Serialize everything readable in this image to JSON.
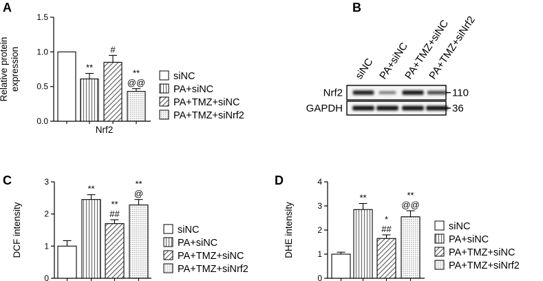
{
  "panels": {
    "A": {
      "letter": "A"
    },
    "B": {
      "letter": "B"
    },
    "C": {
      "letter": "C"
    },
    "D": {
      "letter": "D"
    }
  },
  "legend_entries": [
    "siNC",
    "PA+siNC",
    "PA+TMZ+siNC",
    "PA+TMZ+siNrf2"
  ],
  "chart_data": [
    {
      "id": "A",
      "type": "bar",
      "categories": [
        "siNC",
        "PA+siNC",
        "PA+TMZ+siNC",
        "PA+TMZ+siNrf2"
      ],
      "values": [
        1.0,
        0.61,
        0.85,
        0.43
      ],
      "errors": [
        0,
        0.08,
        0.1,
        0.04
      ],
      "annotations": [
        [],
        [
          "**"
        ],
        [
          "#"
        ],
        [
          "**",
          "@@"
        ]
      ],
      "ylabel": "Relative protein expression",
      "ylabel_lines": [
        "Relative protein",
        "expression"
      ],
      "xlabel": "Nrf2",
      "ylim": [
        0.0,
        1.5
      ],
      "yticks": [
        "0.0",
        "0.5",
        "1.0",
        "1.5"
      ],
      "legend": [
        "siNC",
        "PA+siNC",
        "PA+TMZ+siNC",
        "PA+TMZ+siNrf2"
      ],
      "legend_position": "right"
    },
    {
      "id": "C",
      "type": "bar",
      "categories": [
        "siNC",
        "PA+siNC",
        "PA+TMZ+siNC",
        "PA+TMZ+siNrf2"
      ],
      "values": [
        1.0,
        2.45,
        1.7,
        2.28
      ],
      "errors": [
        0.17,
        0.15,
        0.12,
        0.17
      ],
      "annotations": [
        [],
        [
          "**"
        ],
        [
          "**",
          "##"
        ],
        [
          "**",
          "@"
        ]
      ],
      "ylabel": "DCF intensity",
      "xlabel": "",
      "ylim": [
        0,
        3
      ],
      "yticks": [
        "0",
        "1",
        "2",
        "3"
      ],
      "legend": [
        "siNC",
        "PA+siNC",
        "PA+TMZ+siNC",
        "PA+TMZ+siNrf2"
      ],
      "legend_position": "right"
    },
    {
      "id": "D",
      "type": "bar",
      "categories": [
        "siNC",
        "PA+siNC",
        "PA+TMZ+siNC",
        "PA+TMZ+siNrf2"
      ],
      "values": [
        1.0,
        2.85,
        1.65,
        2.55
      ],
      "errors": [
        0.08,
        0.25,
        0.15,
        0.25
      ],
      "annotations": [
        [],
        [
          "**"
        ],
        [
          "*",
          "##"
        ],
        [
          "**",
          "@@"
        ]
      ],
      "ylabel": "DHE intensity",
      "xlabel": "",
      "ylim": [
        0,
        4
      ],
      "yticks": [
        "0",
        "1",
        "2",
        "3",
        "4"
      ],
      "legend": [
        "siNC",
        "PA+siNC",
        "PA+TMZ+siNC",
        "PA+TMZ+siNrf2"
      ],
      "legend_position": "right"
    }
  ],
  "western_blot": {
    "lanes": [
      "siNC",
      "PA+siNC",
      "PA+TMZ+siNC",
      "PA+TMZ+siNrf2"
    ],
    "rows": [
      {
        "label": "Nrf2",
        "size": "110",
        "intensities": [
          0.85,
          0.3,
          0.9,
          0.6
        ]
      },
      {
        "label": "GAPDH",
        "size": "36",
        "intensities": [
          0.95,
          0.95,
          0.95,
          0.95
        ]
      }
    ]
  },
  "colors": {
    "bar_fill": "#ffffff",
    "pattern_ink": "#555555",
    "axis": "#000000",
    "band": "#1a1a1a"
  }
}
